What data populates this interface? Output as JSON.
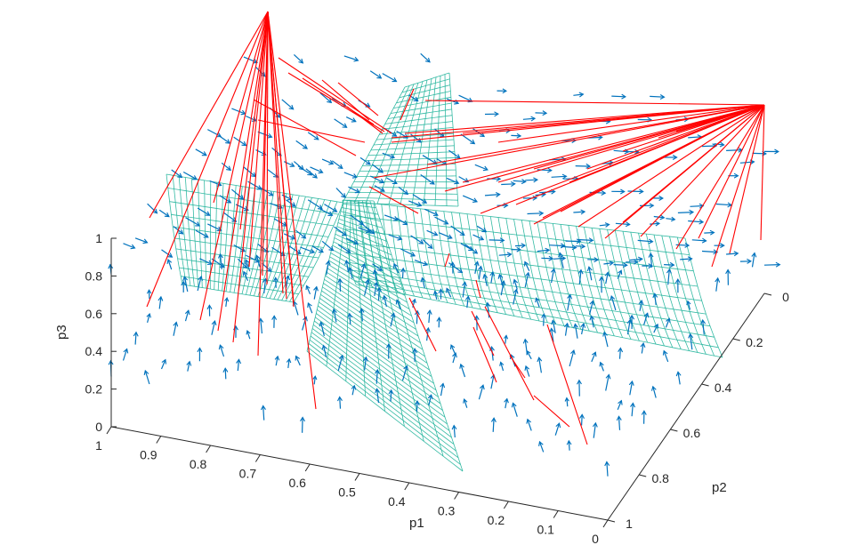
{
  "chart_data": {
    "type": "3d-quiver-surface",
    "title": "",
    "x_axis": {
      "label": "p1",
      "range": [
        0,
        1
      ],
      "ticks": [
        "1",
        "0.9",
        "0.8",
        "0.7",
        "0.6",
        "0.5",
        "0.4",
        "0.3",
        "0.2",
        "0.1",
        "0"
      ]
    },
    "y_axis": {
      "label": "p2",
      "range": [
        0,
        1
      ],
      "ticks": [
        "0",
        "0.2",
        "0.4",
        "0.6",
        "0.8",
        "1"
      ]
    },
    "z_axis": {
      "label": "p3",
      "range": [
        0,
        1
      ],
      "ticks": [
        "0",
        "0.2",
        "0.4",
        "0.6",
        "0.8",
        "1"
      ]
    },
    "colors": {
      "axis": "#262626",
      "vector_field": "#0072BD",
      "trajectories": "#FF0000",
      "surface_mesh": "#1FB39A"
    },
    "trajectory_attractors": [
      {
        "p1": 1,
        "p2": 0,
        "p3": 1
      },
      {
        "p1": 0,
        "p2": 0,
        "p3": 1
      }
    ]
  }
}
